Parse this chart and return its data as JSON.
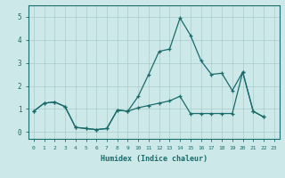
{
  "xlabel": "Humidex (Indice chaleur)",
  "xlim": [
    -0.5,
    23.5
  ],
  "ylim": [
    -0.3,
    5.5
  ],
  "xticks": [
    0,
    1,
    2,
    3,
    4,
    5,
    6,
    7,
    8,
    9,
    10,
    11,
    12,
    13,
    14,
    15,
    16,
    17,
    18,
    19,
    20,
    21,
    22,
    23
  ],
  "yticks": [
    0,
    1,
    2,
    3,
    4,
    5
  ],
  "background_color": "#cce8e8",
  "grid_color": "#aacccc",
  "line_color": "#1a6b6b",
  "line1_x": [
    0,
    1,
    2,
    3,
    4,
    5,
    6,
    7,
    8,
    9,
    10,
    11,
    12,
    13,
    14,
    15,
    16,
    17,
    18,
    19,
    20,
    21,
    22
  ],
  "line1_y": [
    0.9,
    1.25,
    1.3,
    1.1,
    0.2,
    0.15,
    0.1,
    0.15,
    0.95,
    0.9,
    1.55,
    2.5,
    3.5,
    3.6,
    4.95,
    4.2,
    3.1,
    2.5,
    2.55,
    1.8,
    2.6,
    0.9,
    0.65
  ],
  "line2_x": [
    0,
    1,
    2,
    3,
    4,
    5,
    6,
    7,
    8,
    9,
    10,
    11,
    12,
    13,
    14,
    15,
    16,
    17,
    18,
    19,
    20,
    21,
    22
  ],
  "line2_y": [
    0.9,
    1.25,
    1.3,
    1.1,
    0.2,
    0.15,
    0.1,
    0.15,
    0.95,
    0.9,
    1.05,
    1.15,
    1.25,
    1.35,
    1.55,
    0.8,
    0.8,
    0.8,
    0.8,
    0.8,
    2.6,
    0.9,
    0.65
  ]
}
